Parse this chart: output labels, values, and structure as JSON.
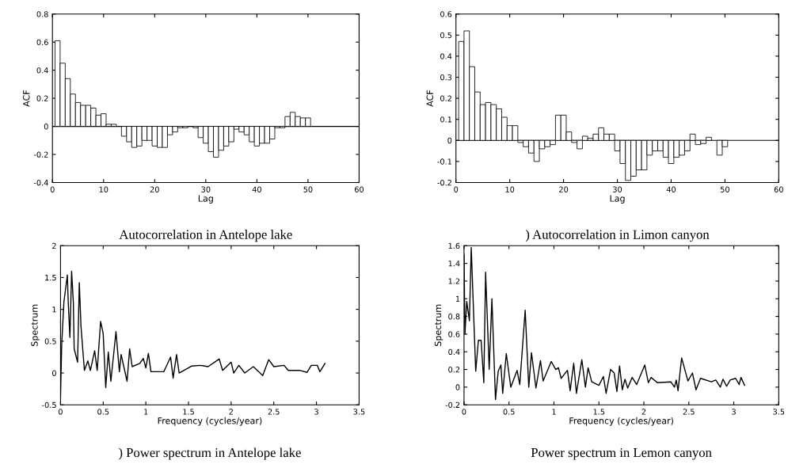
{
  "chart_data": [
    {
      "type": "bar",
      "title": "Autocorrelation in Antelope lake",
      "xlabel": "Lag",
      "ylabel": "ACF",
      "x": [
        1,
        2,
        3,
        4,
        5,
        6,
        7,
        8,
        9,
        10,
        11,
        12,
        13,
        14,
        15,
        16,
        17,
        18,
        19,
        20,
        21,
        22,
        23,
        24,
        25,
        26,
        27,
        28,
        29,
        30,
        31,
        32,
        33,
        34,
        35,
        36,
        37,
        38,
        39,
        40,
        41,
        42,
        43,
        44,
        45,
        46,
        47,
        48,
        49,
        50
      ],
      "values": [
        0.61,
        0.45,
        0.34,
        0.23,
        0.17,
        0.15,
        0.15,
        0.13,
        0.08,
        0.09,
        0.015,
        0.015,
        null,
        -0.07,
        -0.11,
        -0.15,
        -0.14,
        -0.1,
        -0.1,
        -0.14,
        -0.15,
        -0.15,
        -0.06,
        -0.04,
        -0.01,
        -0.01,
        null,
        -0.01,
        -0.08,
        -0.12,
        -0.18,
        -0.22,
        -0.17,
        -0.14,
        -0.11,
        -0.02,
        -0.04,
        -0.06,
        -0.11,
        -0.14,
        -0.12,
        -0.12,
        -0.09,
        -0.01,
        -0.01,
        0.07,
        0.1,
        0.07,
        0.06,
        0.06
      ],
      "color": "#ffffff",
      "ref_lines": [
        {
          "axis": "y",
          "value": 0
        }
      ],
      "xlim": [
        0,
        60
      ],
      "xticks": [
        0,
        10,
        20,
        30,
        40,
        50,
        60
      ],
      "ylim": [
        -0.4,
        0.8
      ],
      "yticks": [
        -0.4,
        -0.2,
        0,
        0.2,
        0.4,
        0.6,
        0.8
      ],
      "grid": false,
      "legend": false
    },
    {
      "type": "bar",
      "title": ") Autocorrelation in Limon canyon",
      "xlabel": "Lag",
      "ylabel": "ACF",
      "x": [
        1,
        2,
        3,
        4,
        5,
        6,
        7,
        8,
        9,
        10,
        11,
        12,
        13,
        14,
        15,
        16,
        17,
        18,
        19,
        20,
        21,
        22,
        23,
        24,
        25,
        26,
        27,
        28,
        29,
        30,
        31,
        32,
        33,
        34,
        35,
        36,
        37,
        38,
        39,
        40,
        41,
        42,
        43,
        44,
        45,
        46,
        47,
        48,
        49,
        50
      ],
      "values": [
        0.47,
        0.52,
        0.35,
        0.23,
        0.17,
        0.18,
        0.17,
        0.15,
        0.11,
        0.07,
        0.07,
        -0.01,
        -0.03,
        -0.06,
        -0.1,
        -0.04,
        -0.03,
        -0.02,
        0.12,
        0.12,
        0.04,
        -0.01,
        -0.04,
        0.02,
        0.01,
        0.03,
        0.06,
        0.03,
        0.03,
        -0.05,
        -0.11,
        -0.19,
        -0.17,
        -0.14,
        -0.14,
        -0.07,
        -0.05,
        -0.05,
        -0.08,
        -0.11,
        -0.08,
        -0.07,
        -0.05,
        0.03,
        -0.02,
        -0.015,
        0.015,
        null,
        -0.07,
        -0.03
      ],
      "color": "#ffffff",
      "ref_lines": [
        {
          "axis": "y",
          "value": 0
        }
      ],
      "xlim": [
        0,
        60
      ],
      "xticks": [
        0,
        10,
        20,
        30,
        40,
        50,
        60
      ],
      "ylim": [
        -0.2,
        0.6
      ],
      "yticks": [
        -0.2,
        -0.1,
        0,
        0.1,
        0.2,
        0.3,
        0.4,
        0.5,
        0.6
      ],
      "grid": false,
      "legend": false
    },
    {
      "type": "line",
      "title": ") Power spectrum in Antelope lake",
      "xlabel": "Frequency (cycles/year)",
      "ylabel": "Spectrum",
      "x": [
        0,
        0.014,
        0.04,
        0.08,
        0.09,
        0.11,
        0.13,
        0.15,
        0.16,
        0.2,
        0.22,
        0.24,
        0.28,
        0.32,
        0.35,
        0.4,
        0.43,
        0.47,
        0.5,
        0.53,
        0.56,
        0.59,
        0.65,
        0.69,
        0.71,
        0.78,
        0.81,
        0.84,
        0.93,
        0.97,
        1.0,
        1.03,
        1.06,
        1.21,
        1.29,
        1.32,
        1.36,
        1.39,
        1.54,
        1.64,
        1.73,
        1.86,
        1.9,
        2.0,
        2.03,
        2.09,
        2.16,
        2.26,
        2.37,
        2.44,
        2.5,
        2.62,
        2.67,
        2.81,
        2.89,
        2.94,
        3.01,
        3.04,
        3.1
      ],
      "values": [
        -0.38,
        0.46,
        1.12,
        1.54,
        1.12,
        0.56,
        1.6,
        1.12,
        0.38,
        0.17,
        1.42,
        0.73,
        0.04,
        0.19,
        0.04,
        0.35,
        0.04,
        0.81,
        0.62,
        -0.23,
        0.33,
        -0.13,
        0.65,
        0.02,
        0.29,
        -0.13,
        0.38,
        0.1,
        0.15,
        0.23,
        0.08,
        0.31,
        0.02,
        0.02,
        0.25,
        -0.08,
        0.29,
        0.0,
        0.11,
        0.12,
        0.1,
        0.22,
        0.04,
        0.17,
        0.0,
        0.12,
        0.0,
        0.1,
        -0.04,
        0.21,
        0.1,
        0.12,
        0.04,
        0.04,
        0.01,
        0.12,
        0.12,
        0.02,
        0.15
      ],
      "color": "#000000",
      "line_style": "solid",
      "marker": "none",
      "xlim": [
        0,
        3.5
      ],
      "xticks": [
        0,
        0.5,
        1,
        1.5,
        2,
        2.5,
        3,
        3.5
      ],
      "ylim": [
        -0.5,
        2
      ],
      "yticks": [
        -0.5,
        0,
        0.5,
        1,
        1.5,
        2
      ],
      "grid": false,
      "legend": false
    },
    {
      "type": "line",
      "title": "Power spectrum in Lemon canyon",
      "xlabel": "Frequency (cycles/year)",
      "ylabel": "Spectrum",
      "x": [
        0,
        0.01,
        0.03,
        0.06,
        0.08,
        0.13,
        0.16,
        0.19,
        0.22,
        0.24,
        0.28,
        0.31,
        0.35,
        0.38,
        0.41,
        0.43,
        0.47,
        0.52,
        0.59,
        0.62,
        0.68,
        0.72,
        0.75,
        0.8,
        0.85,
        0.88,
        0.97,
        1.02,
        1.05,
        1.08,
        1.15,
        1.18,
        1.22,
        1.25,
        1.31,
        1.35,
        1.38,
        1.42,
        1.5,
        1.55,
        1.58,
        1.63,
        1.67,
        1.7,
        1.73,
        1.76,
        1.79,
        1.82,
        1.87,
        1.92,
        2.01,
        2.05,
        2.08,
        2.15,
        2.3,
        2.34,
        2.36,
        2.38,
        2.42,
        2.49,
        2.54,
        2.58,
        2.63,
        2.75,
        2.8,
        2.85,
        2.88,
        2.92,
        2.96,
        3.02,
        3.06,
        3.08,
        3.12
      ],
      "values": [
        1.5,
        0.6,
        0.97,
        0.75,
        1.58,
        0.18,
        0.53,
        0.53,
        0.05,
        1.3,
        0.2,
        1.0,
        -0.14,
        0.18,
        0.25,
        -0.07,
        0.38,
        0.0,
        0.19,
        0.03,
        0.87,
        0.0,
        0.39,
        -0.01,
        0.3,
        0.07,
        0.29,
        0.2,
        0.22,
        0.1,
        0.19,
        -0.04,
        0.27,
        -0.07,
        0.31,
        0.0,
        0.22,
        0.06,
        0.02,
        0.12,
        -0.07,
        0.2,
        0.16,
        -0.05,
        0.24,
        -0.03,
        0.09,
        -0.01,
        0.11,
        0.03,
        0.25,
        0.05,
        0.11,
        0.05,
        0.06,
        0.0,
        0.08,
        -0.04,
        0.33,
        0.07,
        0.16,
        -0.03,
        0.1,
        0.06,
        0.08,
        0.0,
        0.09,
        0.01,
        0.08,
        0.1,
        0.03,
        0.11,
        0.02
      ],
      "color": "#000000",
      "line_style": "solid",
      "marker": "none",
      "xlim": [
        0,
        3.5
      ],
      "xticks": [
        0,
        0.5,
        1,
        1.5,
        2,
        2.5,
        3,
        3.5
      ],
      "ylim": [
        -0.2,
        1.6
      ],
      "yticks": [
        -0.2,
        0,
        0.2,
        0.4,
        0.6,
        0.8,
        1,
        1.2,
        1.4,
        1.6
      ],
      "grid": false,
      "legend": false
    }
  ]
}
